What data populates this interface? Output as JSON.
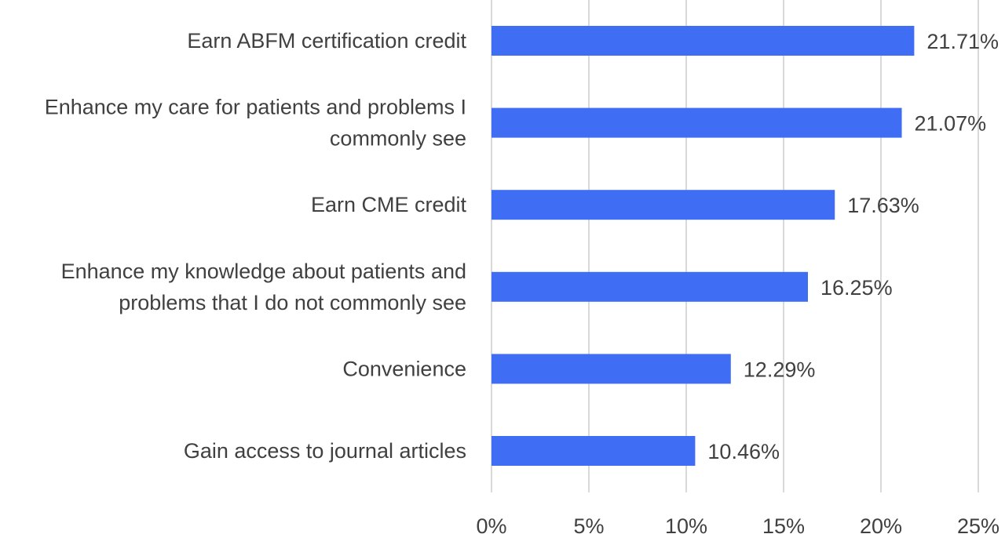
{
  "chart_data": {
    "type": "bar",
    "orientation": "horizontal",
    "categories": [
      [
        "Earn ABFM certification credit"
      ],
      [
        "Enhance my care for patients and problems I",
        "commonly see"
      ],
      [
        "Earn CME credit"
      ],
      [
        "Enhance my knowledge about patients and",
        "problems that I do not commonly see"
      ],
      [
        "Convenience"
      ],
      [
        "Gain access to journal articles"
      ]
    ],
    "values": [
      21.71,
      21.07,
      17.63,
      16.25,
      12.29,
      10.46
    ],
    "data_labels": [
      "21.71%",
      "21.07%",
      "17.63%",
      "16.25%",
      "12.29%",
      "10.46%"
    ],
    "xlim": [
      0,
      25
    ],
    "xticks": [
      0,
      5,
      10,
      15,
      20,
      25
    ],
    "xtick_labels": [
      "0%",
      "5%",
      "10%",
      "15%",
      "20%",
      "25%"
    ],
    "grid": true,
    "legend": "none",
    "bar_color": "#3f6ef4",
    "grid_color": "#d9d9d9",
    "text_color": "#404040"
  }
}
